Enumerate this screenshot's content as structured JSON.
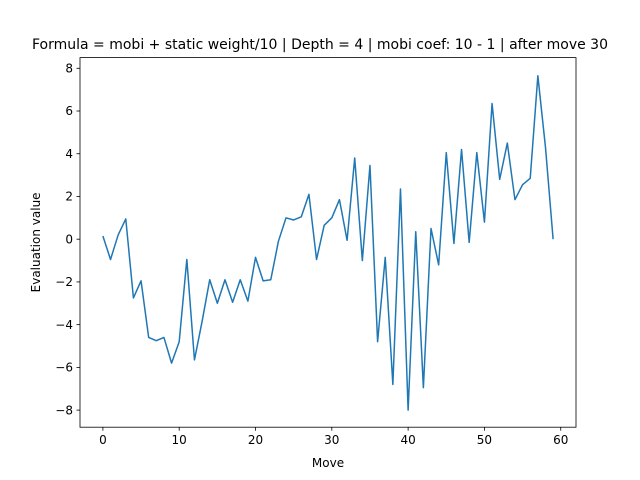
{
  "chart_data": {
    "type": "line",
    "title": "Formula = mobi + static weight/10 | Depth = 4 | mobi coef: 10 - 1 | after move 30",
    "xlabel": "Move",
    "ylabel": "Evaluation value",
    "xlim": [
      -3,
      62
    ],
    "ylim": [
      -8.8,
      8.5
    ],
    "xticks": [
      0,
      10,
      20,
      30,
      40,
      50,
      60
    ],
    "yticks": [
      -8,
      -6,
      -4,
      -2,
      0,
      2,
      4,
      6,
      8
    ],
    "grid": false,
    "series": [
      {
        "color": "#1f77b4",
        "x": [
          0,
          1,
          2,
          3,
          4,
          5,
          6,
          7,
          8,
          9,
          10,
          11,
          12,
          13,
          14,
          15,
          16,
          17,
          18,
          19,
          20,
          21,
          22,
          23,
          24,
          25,
          26,
          27,
          28,
          29,
          30,
          31,
          32,
          33,
          34,
          35,
          36,
          37,
          38,
          39,
          40,
          41,
          42,
          43,
          44,
          45,
          46,
          47,
          48,
          49,
          50,
          51,
          52,
          53,
          54,
          55,
          56,
          57,
          58,
          59
        ],
        "y": [
          0.15,
          -0.95,
          0.2,
          0.95,
          -2.75,
          -1.95,
          -4.6,
          -4.75,
          -4.6,
          -5.8,
          -4.8,
          -0.95,
          -5.65,
          -3.85,
          -1.9,
          -3.0,
          -1.9,
          -2.95,
          -1.9,
          -2.9,
          -0.85,
          -1.95,
          -1.9,
          -0.1,
          1.0,
          0.9,
          1.05,
          2.1,
          -0.95,
          0.65,
          1.0,
          1.85,
          -0.05,
          3.8,
          -1.0,
          3.45,
          -4.8,
          -0.85,
          -6.8,
          2.35,
          -8.0,
          0.35,
          -6.95,
          0.5,
          -1.2,
          4.05,
          -0.2,
          4.2,
          -0.15,
          4.05,
          0.8,
          6.35,
          2.8,
          4.5,
          1.85,
          2.55,
          2.85,
          7.65,
          4.3,
          0.0
        ]
      }
    ]
  }
}
